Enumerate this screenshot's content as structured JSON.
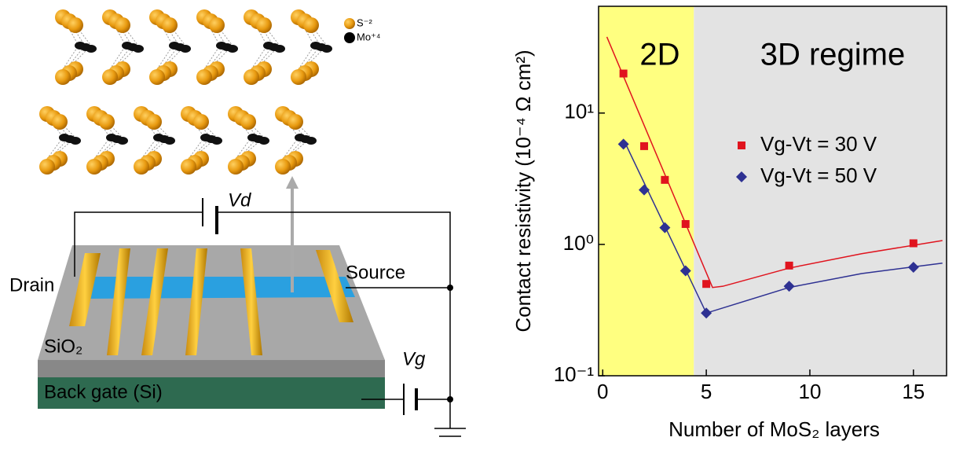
{
  "diagram": {
    "labels": {
      "sulfur": "S⁻²",
      "molybdenum": "Mo⁺⁴",
      "drain_voltage": "Vd",
      "drain": "Drain",
      "source": "Source",
      "oxide": "SiO₂",
      "gate_voltage": "Vg",
      "back_gate": "Back gate (Si)"
    }
  },
  "chart_data": {
    "type": "scatter",
    "x_label": "Number of MoS₂ layers",
    "y_label": "Contact resistivity (10⁻⁴ Ω cm²)",
    "xlim": [
      -0.2,
      16.6
    ],
    "xticks": [
      0,
      5,
      10,
      15
    ],
    "ylim": [
      0.1,
      65
    ],
    "log_y": true,
    "yticks": [
      {
        "value": 0.1,
        "label": "10⁻¹"
      },
      {
        "value": 1,
        "label": "10⁰"
      },
      {
        "value": 10,
        "label": "10¹"
      }
    ],
    "regions": [
      {
        "label": "2D",
        "x": [
          -0.2,
          4.4
        ],
        "color": "#ffff80"
      },
      {
        "label": "3D regime",
        "x": [
          4.4,
          16.6
        ],
        "color": "#e3e3e3"
      }
    ],
    "series": [
      {
        "name": "Vg-Vt = 30 V",
        "color": "#e0141e",
        "marker": "square",
        "x": [
          1,
          2,
          3,
          4,
          5,
          9,
          15
        ],
        "values": [
          20,
          5.6,
          3.1,
          1.43,
          0.5,
          0.69,
          1.02
        ],
        "fit_x": [
          0.2,
          5.3,
          5.8,
          9,
          12.5,
          16.4
        ],
        "fit_values": [
          38,
          0.47,
          0.48,
          0.66,
          0.85,
          1.07
        ]
      },
      {
        "name": "Vg-Vt = 50 V",
        "color": "#2e3192",
        "marker": "diamond",
        "x": [
          1,
          2,
          3,
          4,
          5,
          9,
          15
        ],
        "values": [
          5.8,
          2.6,
          1.34,
          0.63,
          0.3,
          0.48,
          0.67
        ],
        "fit_x": [
          1,
          5,
          9,
          12.5,
          16.4
        ],
        "fit_values": [
          6.3,
          0.3,
          0.47,
          0.6,
          0.72
        ]
      }
    ],
    "legend": "upper-right"
  }
}
